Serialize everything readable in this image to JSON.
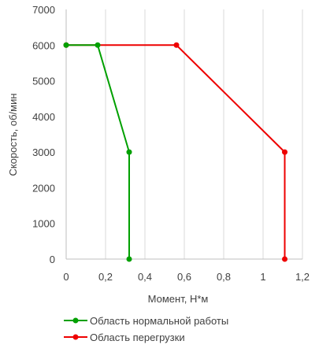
{
  "chart_data": {
    "type": "scatter",
    "title": "",
    "xlabel": "Момент, Н*м",
    "ylabel": "Скорость, об/мин",
    "xlim": [
      0,
      1.2
    ],
    "ylim": [
      0,
      7000
    ],
    "x_ticks": [
      "0",
      "0,2",
      "0,4",
      "0,6",
      "0,8",
      "1",
      "1,2"
    ],
    "y_ticks": [
      "0",
      "1000",
      "2000",
      "3000",
      "4000",
      "5000",
      "6000",
      "7000"
    ],
    "grid": "vertical",
    "legend_position": "bottom",
    "series": [
      {
        "name": "Область нормальной работы",
        "color": "#00a000",
        "points": [
          {
            "x": 0,
            "y": 6000
          },
          {
            "x": 0.16,
            "y": 6000
          },
          {
            "x": 0.32,
            "y": 3000
          },
          {
            "x": 0.32,
            "y": 0
          }
        ]
      },
      {
        "name": "Область перегрузки",
        "color": "#ee0000",
        "points": [
          {
            "x": 0,
            "y": 6000
          },
          {
            "x": 0.56,
            "y": 6000
          },
          {
            "x": 1.11,
            "y": 3000
          },
          {
            "x": 1.11,
            "y": 0
          }
        ]
      }
    ]
  }
}
